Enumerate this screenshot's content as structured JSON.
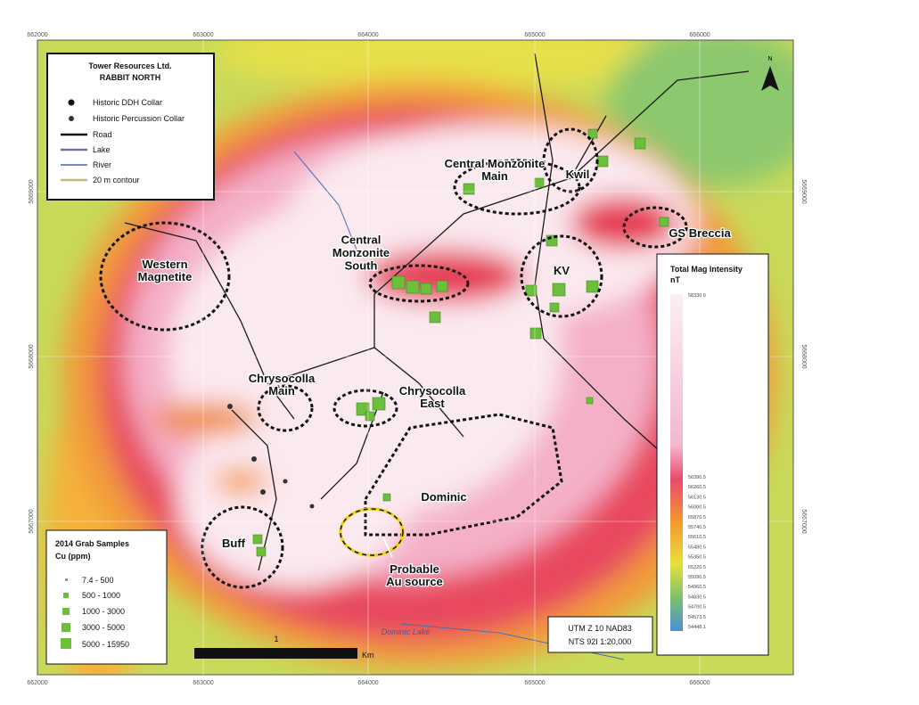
{
  "map": {
    "grid_labels": {
      "easting": [
        "662000",
        "663000",
        "664000",
        "665000",
        "666000"
      ],
      "northing": [
        "5669000",
        "5668000",
        "5667000"
      ]
    },
    "legend": {
      "title": "Tower Resources Ltd.",
      "subtitle": "RABBIT NORTH",
      "items": [
        "Historic DDH Collar",
        "Historic Percussion Collar",
        "Road",
        "Lake",
        "River",
        "20 m contour"
      ]
    },
    "areas": [
      "Central Monzonite\nMain",
      "Kwil",
      "GS Breccia",
      "Western\nMagnetite",
      "Central\nMonzonite\nSouth",
      "KV",
      "Chrysocolla\nMain",
      "Chrysocolla\nEast",
      "Dominic",
      "Buff"
    ],
    "annotation": "Probable\nAu source",
    "lake_name": "Dominic Lake",
    "samples_legend": {
      "title": "2014 Grab Samples",
      "subtitle": "Cu (ppm)",
      "classes": [
        "7.4 - 500",
        "500 - 1000",
        "1000 - 3000",
        "3000 - 5000",
        "5000 - 15950"
      ]
    },
    "scale": {
      "label": "1",
      "unit": "Km"
    },
    "projection": [
      "UTM Z 10 NAD83",
      "NTS 92I 1:20,000"
    ],
    "mag_legend": {
      "title": "Total Mag Intensity",
      "unit": "nT",
      "max": "58330.6",
      "labels": [
        "56390.5",
        "56260.5",
        "56130.5",
        "56000.5",
        "55870.5",
        "55740.5",
        "55610.5",
        "55480.5",
        "55350.5",
        "55220.5",
        "55090.5",
        "54960.5",
        "54830.5",
        "54700.5",
        "54573.5",
        "54448.1"
      ]
    },
    "north": "N"
  }
}
